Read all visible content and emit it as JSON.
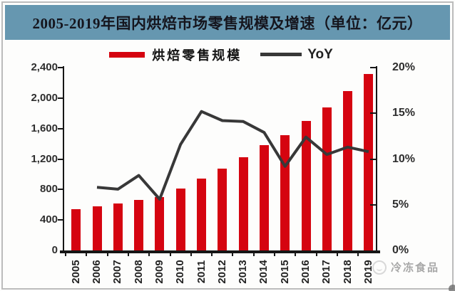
{
  "banner": {
    "title": "2005-2019年国内烘焙市场零售规模及增速（单位：亿元）",
    "bg_color": "#6697b0",
    "text_color": "#15151d"
  },
  "legend": {
    "position": "top",
    "items": [
      {
        "label": "烘焙零售规模",
        "marker": "thick-bar-swatch",
        "color": "#d50410"
      },
      {
        "label": "YoY",
        "marker": "line-swatch",
        "color": "#383838"
      }
    ]
  },
  "watermark": {
    "icon": "circle-logo",
    "text": "冷冻食品",
    "color": "#9a9a9a"
  },
  "chart_data": {
    "type": "bar",
    "subtype": "combo-bar-line",
    "title": "2005-2019年国内烘焙市场零售规模及增速（单位：亿元）",
    "categories": [
      "2005",
      "2006",
      "2007",
      "2008",
      "2009",
      "2010",
      "2011",
      "2012",
      "2013",
      "2014",
      "2015",
      "2016",
      "2017",
      "2018",
      "2019"
    ],
    "series": [
      {
        "name": "烘焙零售规模",
        "type": "bar",
        "y_axis": "left",
        "unit": "亿元",
        "color": "#d50410",
        "values": [
          541,
          578,
          617,
          667,
          704,
          816,
          941,
          1075,
          1226,
          1385,
          1513,
          1700,
          1879,
          2091,
          2317
        ]
      },
      {
        "name": "YoY",
        "type": "line",
        "y_axis": "right",
        "unit": "%",
        "color": "#383838",
        "values": [
          null,
          6.9,
          6.7,
          8.2,
          5.6,
          11.6,
          15.2,
          14.2,
          14.1,
          12.9,
          9.2,
          12.4,
          10.5,
          11.3,
          10.8
        ]
      }
    ],
    "left_axis": {
      "min": 0,
      "max": 2400,
      "step": 400,
      "labels": [
        "2,400",
        "2,000",
        "1,600",
        "1,200",
        "800",
        "400",
        "0"
      ]
    },
    "right_axis": {
      "min": 0,
      "max": 20,
      "step": 5,
      "labels": [
        "20%",
        "15%",
        "10%",
        "5%",
        "0%"
      ]
    },
    "grid": false,
    "x_labels_rotation": -90
  }
}
